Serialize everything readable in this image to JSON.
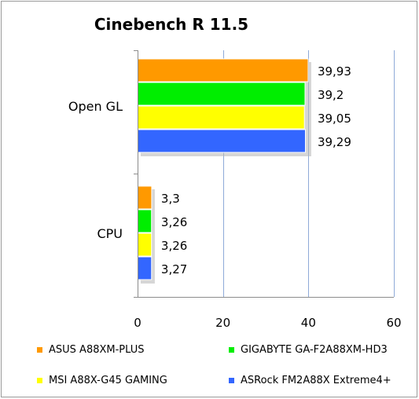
{
  "chart_data": {
    "type": "bar",
    "orientation": "horizontal",
    "title": "Cinebench R 11.5",
    "xlabel": "",
    "ylabel": "",
    "categories": [
      "Open GL",
      "CPU"
    ],
    "xlim": [
      0,
      60
    ],
    "xticks": [
      0,
      20,
      40,
      60
    ],
    "grid": true,
    "legend_position": "bottom",
    "series": [
      {
        "name": "ASUS A88XM-PLUS",
        "color": "#ff9900",
        "values": [
          39.93,
          3.3
        ],
        "labels": [
          "39,93",
          "3,3"
        ]
      },
      {
        "name": "GIGABYTE GA-F2A88XM-HD3",
        "color": "#00ee00",
        "values": [
          39.2,
          3.26
        ],
        "labels": [
          "39,2",
          "3,26"
        ]
      },
      {
        "name": "MSI A88X-G45 GAMING",
        "color": "#ffff00",
        "values": [
          39.05,
          3.26
        ],
        "labels": [
          "39,05",
          "3,26"
        ]
      },
      {
        "name": "ASRock FM2A88X Extreme4+",
        "color": "#3366ff",
        "values": [
          39.29,
          3.27
        ],
        "labels": [
          "39,29",
          "3,27"
        ]
      }
    ]
  }
}
